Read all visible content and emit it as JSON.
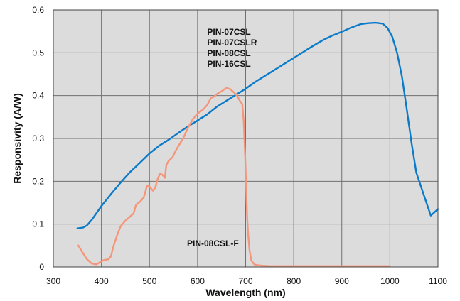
{
  "chart_data": {
    "type": "line",
    "title": "",
    "xlabel": "Wavelength (nm)",
    "ylabel": "Responsivity (A/W)",
    "xlim": [
      300,
      1100
    ],
    "ylim": [
      0,
      0.6
    ],
    "x_ticks": [
      300,
      400,
      500,
      600,
      700,
      800,
      900,
      1000,
      1100
    ],
    "y_ticks": [
      0,
      0.1,
      0.2,
      0.3,
      0.4,
      0.5,
      0.6
    ],
    "x_tick_labels": [
      "300",
      "400",
      "500",
      "600",
      "700",
      "800",
      "900",
      "1000",
      "1100"
    ],
    "y_tick_labels": [
      "0",
      "0.1",
      "0.2",
      "0.3",
      "0.4",
      "0.5",
      "0.6"
    ],
    "grid": true,
    "background": "#dcdcdc",
    "series": [
      {
        "color": "#0a7ac9",
        "x": [
          350,
          362,
          370,
          380,
          400,
          420,
          440,
          460,
          480,
          500,
          520,
          540,
          560,
          580,
          600,
          620,
          640,
          660,
          680,
          700,
          720,
          740,
          760,
          780,
          800,
          820,
          840,
          860,
          880,
          900,
          920,
          940,
          955,
          970,
          985,
          995,
          1005,
          1015,
          1025,
          1035,
          1045,
          1055,
          1070,
          1085,
          1100
        ],
        "y": [
          0.09,
          0.092,
          0.097,
          0.11,
          0.142,
          0.17,
          0.197,
          0.222,
          0.243,
          0.265,
          0.283,
          0.297,
          0.313,
          0.328,
          0.342,
          0.356,
          0.374,
          0.388,
          0.402,
          0.416,
          0.432,
          0.446,
          0.46,
          0.474,
          0.488,
          0.502,
          0.516,
          0.529,
          0.54,
          0.549,
          0.559,
          0.567,
          0.569,
          0.57,
          0.568,
          0.558,
          0.537,
          0.5,
          0.445,
          0.37,
          0.29,
          0.22,
          0.17,
          0.12,
          0.135
        ]
      },
      {
        "color": "#f5967a",
        "x": [
          352,
          360,
          370,
          380,
          390,
          398,
          405,
          415,
          420,
          425,
          428,
          432,
          440,
          450,
          460,
          467,
          472,
          480,
          488,
          495,
          500,
          507,
          512,
          517,
          522,
          527,
          532,
          535,
          540,
          548,
          555,
          560,
          570,
          580,
          590,
          600,
          612,
          620,
          628,
          635,
          642,
          650,
          660,
          668,
          675,
          682,
          688,
          693,
          696,
          699,
          701,
          703,
          705,
          708,
          712,
          718,
          725,
          735,
          750,
          800,
          850,
          900,
          950,
          1000
        ],
        "y": [
          0.05,
          0.035,
          0.018,
          0.008,
          0.006,
          0.012,
          0.016,
          0.018,
          0.025,
          0.048,
          0.058,
          0.072,
          0.095,
          0.108,
          0.118,
          0.125,
          0.145,
          0.152,
          0.162,
          0.19,
          0.188,
          0.178,
          0.185,
          0.205,
          0.218,
          0.215,
          0.208,
          0.238,
          0.248,
          0.256,
          0.272,
          0.282,
          0.3,
          0.325,
          0.345,
          0.358,
          0.368,
          0.378,
          0.395,
          0.398,
          0.405,
          0.41,
          0.418,
          0.415,
          0.408,
          0.4,
          0.388,
          0.38,
          0.34,
          0.26,
          0.19,
          0.12,
          0.08,
          0.04,
          0.015,
          0.006,
          0.004,
          0.003,
          0.002,
          0.002,
          0.002,
          0.002,
          0.002,
          0.002
        ]
      }
    ],
    "annotations": [
      {
        "lines": [
          "PIN-07CSL",
          "PIN-07CSLR",
          "PIN-08CSL",
          "PIN-16CSL"
        ],
        "x": 620,
        "y": 0.542
      },
      {
        "lines": [
          "PIN-08CSL-F"
        ],
        "x": 578,
        "y": 0.048
      }
    ]
  }
}
